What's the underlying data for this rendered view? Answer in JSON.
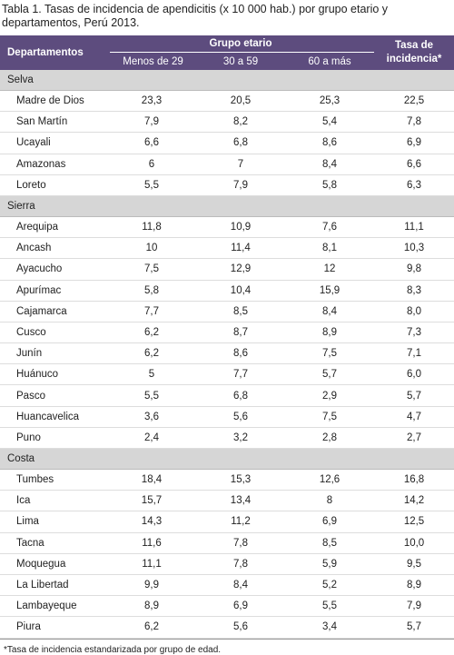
{
  "title": "Tabla 1. Tasas de incidencia de apendicitis (x 10 000 hab.) por grupo etario y departamentos, Perú 2013.",
  "header": {
    "departamentos": "Departamentos",
    "grupo_etario": "Grupo etario",
    "groups": [
      "Menos de 29",
      "30 a 59",
      "60 a más"
    ],
    "tasa": "Tasa de incidencia*"
  },
  "sections": [
    {
      "name": "Selva",
      "rows": [
        [
          "Madre de Dios",
          "23,3",
          "20,5",
          "25,3",
          "22,5"
        ],
        [
          "San Martín",
          "7,9",
          "8,2",
          "5,4",
          "7,8"
        ],
        [
          "Ucayali",
          "6,6",
          "6,8",
          "8,6",
          "6,9"
        ],
        [
          "Amazonas",
          "6",
          "7",
          "8,4",
          "6,6"
        ],
        [
          "Loreto",
          "5,5",
          "7,9",
          "5,8",
          "6,3"
        ]
      ]
    },
    {
      "name": "Sierra",
      "rows": [
        [
          "Arequipa",
          "11,8",
          "10,9",
          "7,6",
          "11,1"
        ],
        [
          "Ancash",
          "10",
          "11,4",
          "8,1",
          "10,3"
        ],
        [
          "Ayacucho",
          "7,5",
          "12,9",
          "12",
          "9,8"
        ],
        [
          "Apurímac",
          "5,8",
          "10,4",
          "15,9",
          "8,3"
        ],
        [
          "Cajamarca",
          "7,7",
          "8,5",
          "8,4",
          "8,0"
        ],
        [
          "Cusco",
          "6,2",
          "8,7",
          "8,9",
          "7,3"
        ],
        [
          "Junín",
          "6,2",
          "8,6",
          "7,5",
          "7,1"
        ],
        [
          "Huánuco",
          "5",
          "7,7",
          "5,7",
          "6,0"
        ],
        [
          "Pasco",
          "5,5",
          "6,8",
          "2,9",
          "5,7"
        ],
        [
          "Huancavelica",
          "3,6",
          "5,6",
          "7,5",
          "4,7"
        ],
        [
          "Puno",
          "2,4",
          "3,2",
          "2,8",
          "2,7"
        ]
      ]
    },
    {
      "name": "Costa",
      "rows": [
        [
          "Tumbes",
          "18,4",
          "15,3",
          "12,6",
          "16,8"
        ],
        [
          "Ica",
          "15,7",
          "13,4",
          "8",
          "14,2"
        ],
        [
          "Lima",
          "14,3",
          "11,2",
          "6,9",
          "12,5"
        ],
        [
          "Tacna",
          "11,6",
          "7,8",
          "8,5",
          "10,0"
        ],
        [
          "Moquegua",
          "11,1",
          "7,8",
          "5,9",
          "9,5"
        ],
        [
          "La Libertad",
          "9,9",
          "8,4",
          "5,2",
          "8,9"
        ],
        [
          "Lambayeque",
          "8,9",
          "6,9",
          "5,5",
          "7,9"
        ],
        [
          "Piura",
          "6,2",
          "5,6",
          "3,4",
          "5,7"
        ]
      ]
    }
  ],
  "footnote": "*Tasa de incidencia estandarizada por grupo de edad."
}
